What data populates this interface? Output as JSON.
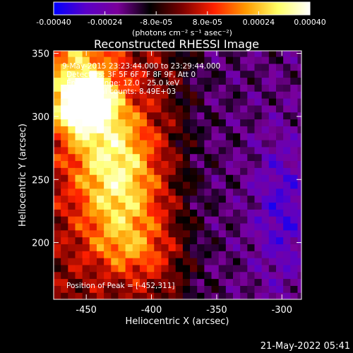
{
  "colorbar": {
    "ticks": [
      "-0.00040",
      "-0.00024",
      "-8.0e-05",
      "8.0e-05",
      "0.00024",
      "0.00040"
    ],
    "tick_values": [
      -0.0004,
      -0.00024,
      -8e-05,
      8e-05,
      0.00024,
      0.0004
    ],
    "range": [
      -0.0004,
      0.0004
    ],
    "units_label": "(photons cm⁻² s⁻¹ asec⁻²)",
    "colors": [
      "#0000ff",
      "#5a00c8",
      "#7a009a",
      "#000000",
      "#7a0000",
      "#ff2000",
      "#ff9a00",
      "#ffff66",
      "#ffffff"
    ]
  },
  "annotations": {
    "time_range": "9-May-2015 23:23:44.000 to 23:29:44.000",
    "detectors": "Detectors: 3F 5F 6F 7F 8F 9F, Att 0",
    "energy_range": "Energy Range: 12.0 - 25.0 keV",
    "clean": "Clean   Total counts: 8.49E+03",
    "peak": "Position of Peak = [-452,311]"
  },
  "footer": {
    "date": "21-May-2022 05:41"
  },
  "chart_data": {
    "type": "heatmap",
    "title": "Reconstructed RHESSI Image",
    "xlabel": "Heliocentric X (arcsec)",
    "ylabel": "Heliocentric Y (arcsec)",
    "xlim": [
      -475,
      -285
    ],
    "ylim": [
      155,
      352
    ],
    "x_ticks": [
      -450,
      -400,
      -350,
      -300
    ],
    "y_ticks": [
      200,
      250,
      300,
      350
    ],
    "x_tick_labels": [
      "-450",
      "-400",
      "-350",
      "-300"
    ],
    "y_tick_labels": [
      "200",
      "250",
      "300",
      "350"
    ],
    "peak_position": [
      -452,
      311
    ],
    "peak_value": 0.0004,
    "grid": false
  }
}
